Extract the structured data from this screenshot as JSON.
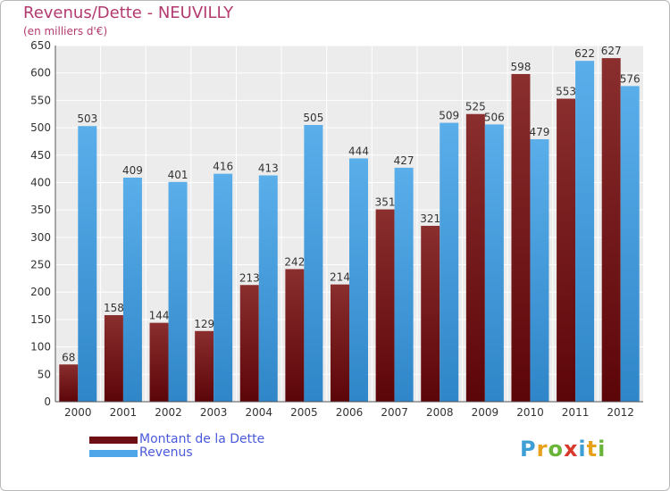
{
  "header": {
    "title": "Revenus/Dette - NEUVILLY",
    "subtitle": "(en milliers d'€)"
  },
  "legend": {
    "items": [
      {
        "label": "Montant de la Dette",
        "color": "#6e0f14"
      },
      {
        "label": "Revenus",
        "color": "#4fa6e8"
      }
    ]
  },
  "logo": {
    "letters": [
      {
        "ch": "P",
        "color": "#3d9fd6"
      },
      {
        "ch": "r",
        "color": "#e8a11c"
      },
      {
        "ch": "o",
        "color": "#6ab43a"
      },
      {
        "ch": "x",
        "color": "#d9392b"
      },
      {
        "ch": "i",
        "color": "#3d9fd6"
      },
      {
        "ch": "t",
        "color": "#e8a11c"
      },
      {
        "ch": "i",
        "color": "#6ab43a"
      }
    ]
  },
  "chart_data": {
    "type": "bar",
    "title": "Revenus/Dette - NEUVILLY",
    "subtitle": "(en milliers d'€)",
    "categories": [
      "2000",
      "2001",
      "2002",
      "2003",
      "2004",
      "2005",
      "2006",
      "2007",
      "2008",
      "2009",
      "2010",
      "2011",
      "2012"
    ],
    "series": [
      {
        "name": "Montant de la Dette",
        "color": "#6e0f14",
        "values": [
          68,
          158,
          144,
          129,
          213,
          242,
          214,
          351,
          321,
          525,
          598,
          553,
          627
        ]
      },
      {
        "name": "Revenus",
        "color": "#4fa6e8",
        "values": [
          503,
          409,
          401,
          416,
          413,
          505,
          444,
          427,
          509,
          506,
          479,
          622,
          576
        ]
      }
    ],
    "ylim": [
      0,
      650
    ],
    "yticks": [
      0,
      50,
      100,
      150,
      200,
      250,
      300,
      350,
      400,
      450,
      500,
      550,
      600,
      650
    ],
    "grid": true,
    "legend_position": "bottom-left",
    "xlabel": "",
    "ylabel": ""
  }
}
